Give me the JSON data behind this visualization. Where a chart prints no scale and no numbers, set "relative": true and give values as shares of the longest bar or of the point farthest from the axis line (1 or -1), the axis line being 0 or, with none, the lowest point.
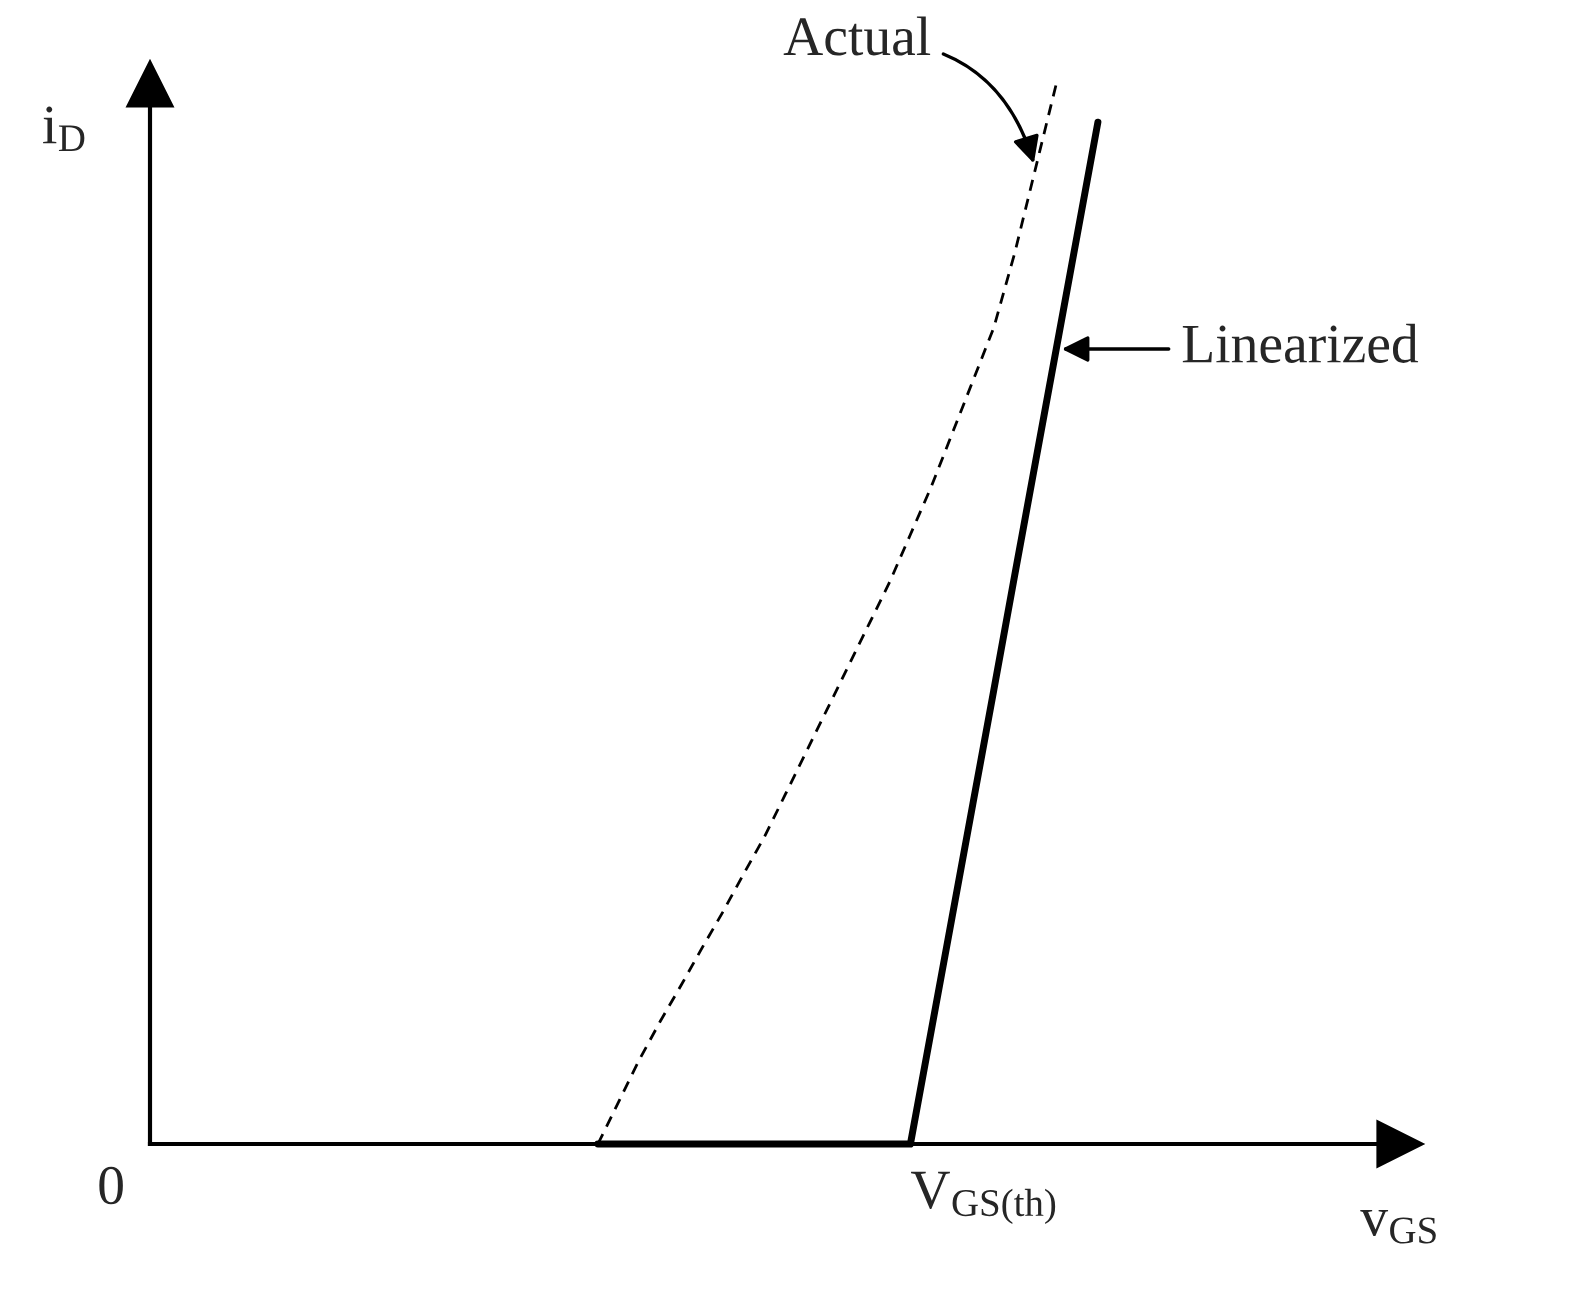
{
  "chart_data": {
    "type": "line",
    "relative": true,
    "categories": [
      null,
      null,
      null,
      null,
      null,
      null,
      null,
      null,
      null,
      null,
      null,
      null,
      null,
      null,
      null,
      null,
      null,
      null,
      null,
      null,
      null,
      null,
      null,
      null,
      null,
      null,
      null,
      null,
      null,
      null,
      null,
      null,
      null,
      null,
      null,
      null,
      null,
      null,
      null,
      null,
      null,
      null,
      null,
      null,
      null,
      null,
      null,
      null,
      null,
      null,
      null,
      null,
      null,
      null,
      null,
      null,
      null,
      null,
      null,
      null
    ],
    "xlabel": "v$_{GS}$",
    "ylabel": "i$_{D}$",
    "annotations": [
      "0",
      "V$_{GS(th)}$"
    ],
    "marker": "none",
    "series": [
      {
        "name": "Actual",
        "color": "#000000",
        "line_style": "dashed",
        "values": [
          null,
          null,
          null,
          null,
          null,
          null,
          null,
          null,
          null,
          null,
          null,
          null,
          null,
          null,
          null,
          null,
          null,
          null,
          null,
          null,
          null,
          0,
          0.04,
          0.08,
          0.116,
          0.15,
          0.185,
          0.219,
          0.255,
          0.29,
          0.33,
          0.37,
          0.41,
          0.45,
          0.49,
          0.53,
          0.575,
          0.62,
          0.67,
          0.72,
          0.77,
          0.84,
          0.92,
          1.0,
          null,
          null,
          null,
          null,
          null,
          null,
          null,
          null,
          null,
          null,
          null,
          null,
          null,
          null,
          null,
          null
        ]
      },
      {
        "name": "Linearized",
        "color": "#000000",
        "line_style": "solid",
        "values": [
          null,
          null,
          null,
          null,
          null,
          null,
          null,
          null,
          null,
          null,
          null,
          null,
          null,
          null,
          null,
          null,
          null,
          null,
          null,
          null,
          null,
          0,
          0,
          0,
          0,
          0,
          0,
          0,
          0,
          0,
          0,
          0,
          0,
          0,
          0,
          0,
          0,
          0.107,
          0.214,
          0.321,
          0.428,
          0.536,
          0.643,
          0.75,
          0.857,
          0.964,
          null,
          null,
          null,
          null,
          null,
          null,
          null,
          null,
          null,
          null,
          null,
          null,
          null,
          null
        ]
      }
    ]
  }
}
